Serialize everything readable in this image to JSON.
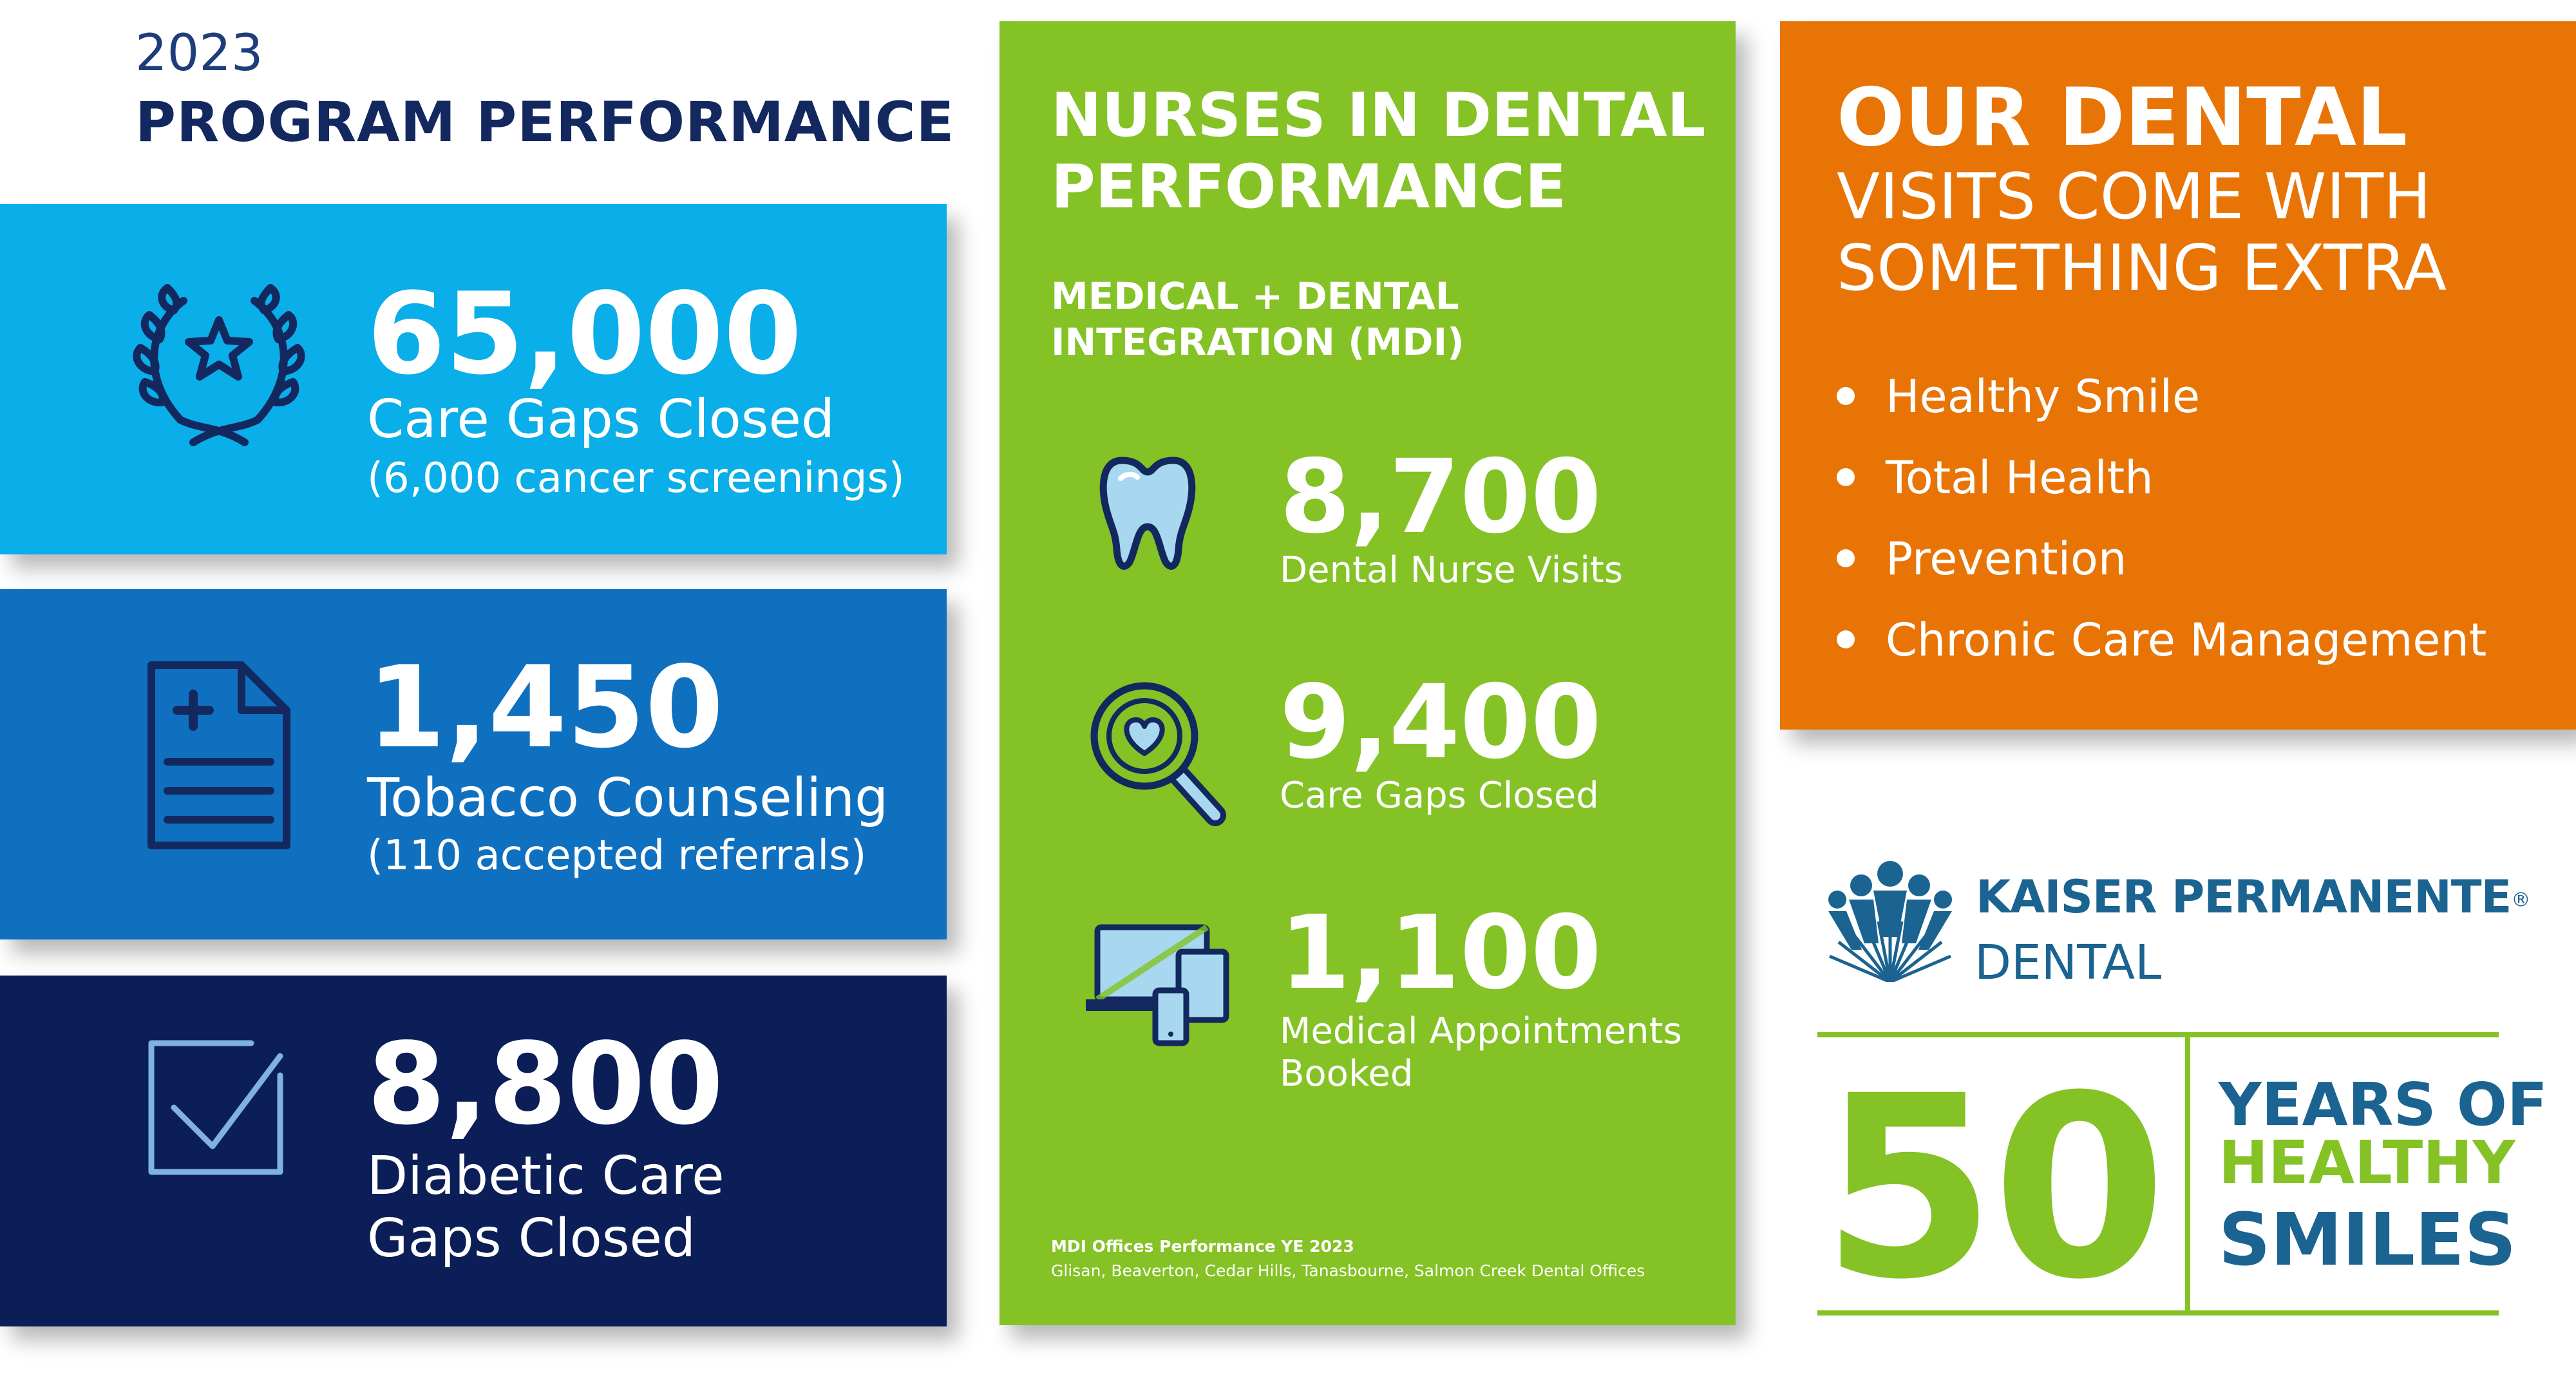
{
  "header": {
    "year": "2023",
    "title": "PROGRAM PERFORMANCE"
  },
  "program_stats": [
    {
      "value": "65,000",
      "label": "Care Gaps Closed",
      "note": "(6,000 cancer screenings)",
      "icon": "laurel-star-icon"
    },
    {
      "value": "1,450",
      "label": "Tobacco Counseling",
      "note": "(110 accepted referrals)",
      "icon": "medical-document-icon"
    },
    {
      "value": "8,800",
      "label_line1": "Diabetic Care",
      "label_line2": "Gaps Closed",
      "icon": "checkbox-icon"
    }
  ],
  "nurses_panel": {
    "title_line1": "NURSES IN DENTAL",
    "title_line2": "PERFORMANCE",
    "subtitle_line1": "MEDICAL + DENTAL",
    "subtitle_line2": "INTEGRATION (MDI)",
    "stats": [
      {
        "value": "8,700",
        "label": "Dental Nurse Visits",
        "icon": "tooth-icon"
      },
      {
        "value": "9,400",
        "label": "Care Gaps Closed",
        "icon": "magnifier-heart-icon"
      },
      {
        "value": "1,100",
        "label_line1": "Medical Appointments",
        "label_line2": "Booked",
        "icon": "devices-icon"
      }
    ],
    "footnote_title": "MDI Offices Performance YE 2023",
    "footnote_offices": "Glisan, Beaverton, Cedar Hills, Tanasbourne, Salmon Creek Dental Offices"
  },
  "dental_panel": {
    "title": "OUR DENTAL",
    "subtitle_line1": "VISITS COME WITH",
    "subtitle_line2": "SOMETHING EXTRA",
    "items": [
      "Healthy Smile",
      "Total Health",
      "Prevention",
      "Chronic Care Management"
    ]
  },
  "brand": {
    "name": "KAISER PERMANENTE",
    "registered": "®",
    "division": "DENTAL",
    "years_number": "50",
    "years_line1": "YEARS OF",
    "years_line2": "HEALTHY",
    "years_line3": "SMILES"
  },
  "colors": {
    "light_blue": "#0aaee8",
    "mid_blue": "#0f70c0",
    "navy": "#0b1e57",
    "green": "#84c225",
    "orange": "#e97406",
    "kp_blue": "#1b6390"
  }
}
